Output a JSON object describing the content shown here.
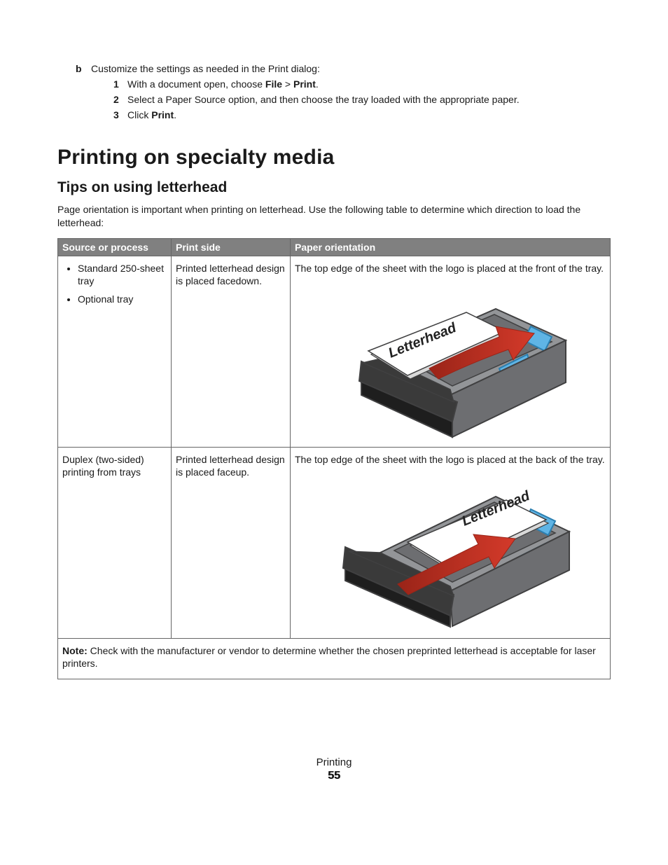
{
  "intro": {
    "marker": "b",
    "text_before": "Customize the settings as needed in the Print dialog:",
    "substeps": [
      {
        "n": "1",
        "prefix": "With a document open, choose ",
        "b1": "File",
        "sep": " > ",
        "b2": "Print",
        "suffix": "."
      },
      {
        "n": "2",
        "text": "Select a Paper Source option, and then choose the tray loaded with the appropriate paper."
      },
      {
        "n": "3",
        "prefix": "Click ",
        "b1": "Print",
        "suffix": "."
      }
    ]
  },
  "h1": "Printing on specialty media",
  "h2": "Tips on using letterhead",
  "para": "Page orientation is important when printing on letterhead. Use the following table to determine which direction to load the letterhead:",
  "table": {
    "headers": [
      "Source or process",
      "Print side",
      "Paper orientation"
    ],
    "rows": [
      {
        "source_items": [
          "Standard 250-sheet tray",
          "Optional tray"
        ],
        "print_side": "Printed letterhead design is placed facedown.",
        "orientation_text": "The top edge of the sheet with the logo is placed at the front of the tray.",
        "diagram": "front"
      },
      {
        "source_plain": "Duplex (two-sided) printing from trays",
        "print_side": "Printed letterhead design is placed faceup.",
        "orientation_text": "The top edge of the sheet with the logo is placed at the back of the tray.",
        "diagram": "back"
      }
    ],
    "note_label": "Note:",
    "note_text": " Check with the manufacturer or vendor to determine whether the chosen preprinted letterhead is acceptable for laser printers."
  },
  "diagram_label": "Letterhead",
  "footer": {
    "section": "Printing",
    "page": "55"
  },
  "colors": {
    "tray_body": "#939598",
    "tray_body_dark": "#6d6e71",
    "tray_front": "#3a3a3a",
    "tray_front_shadow": "#1e1e1e",
    "paper": "#ffffff",
    "paper_edge": "#d9d9d9",
    "guide_blue": "#5fb4e5",
    "guide_blue_dark": "#2b7fb0",
    "arrow_fill": "#d43a2a",
    "arrow_dark": "#9a2418",
    "outline": "#404041"
  }
}
